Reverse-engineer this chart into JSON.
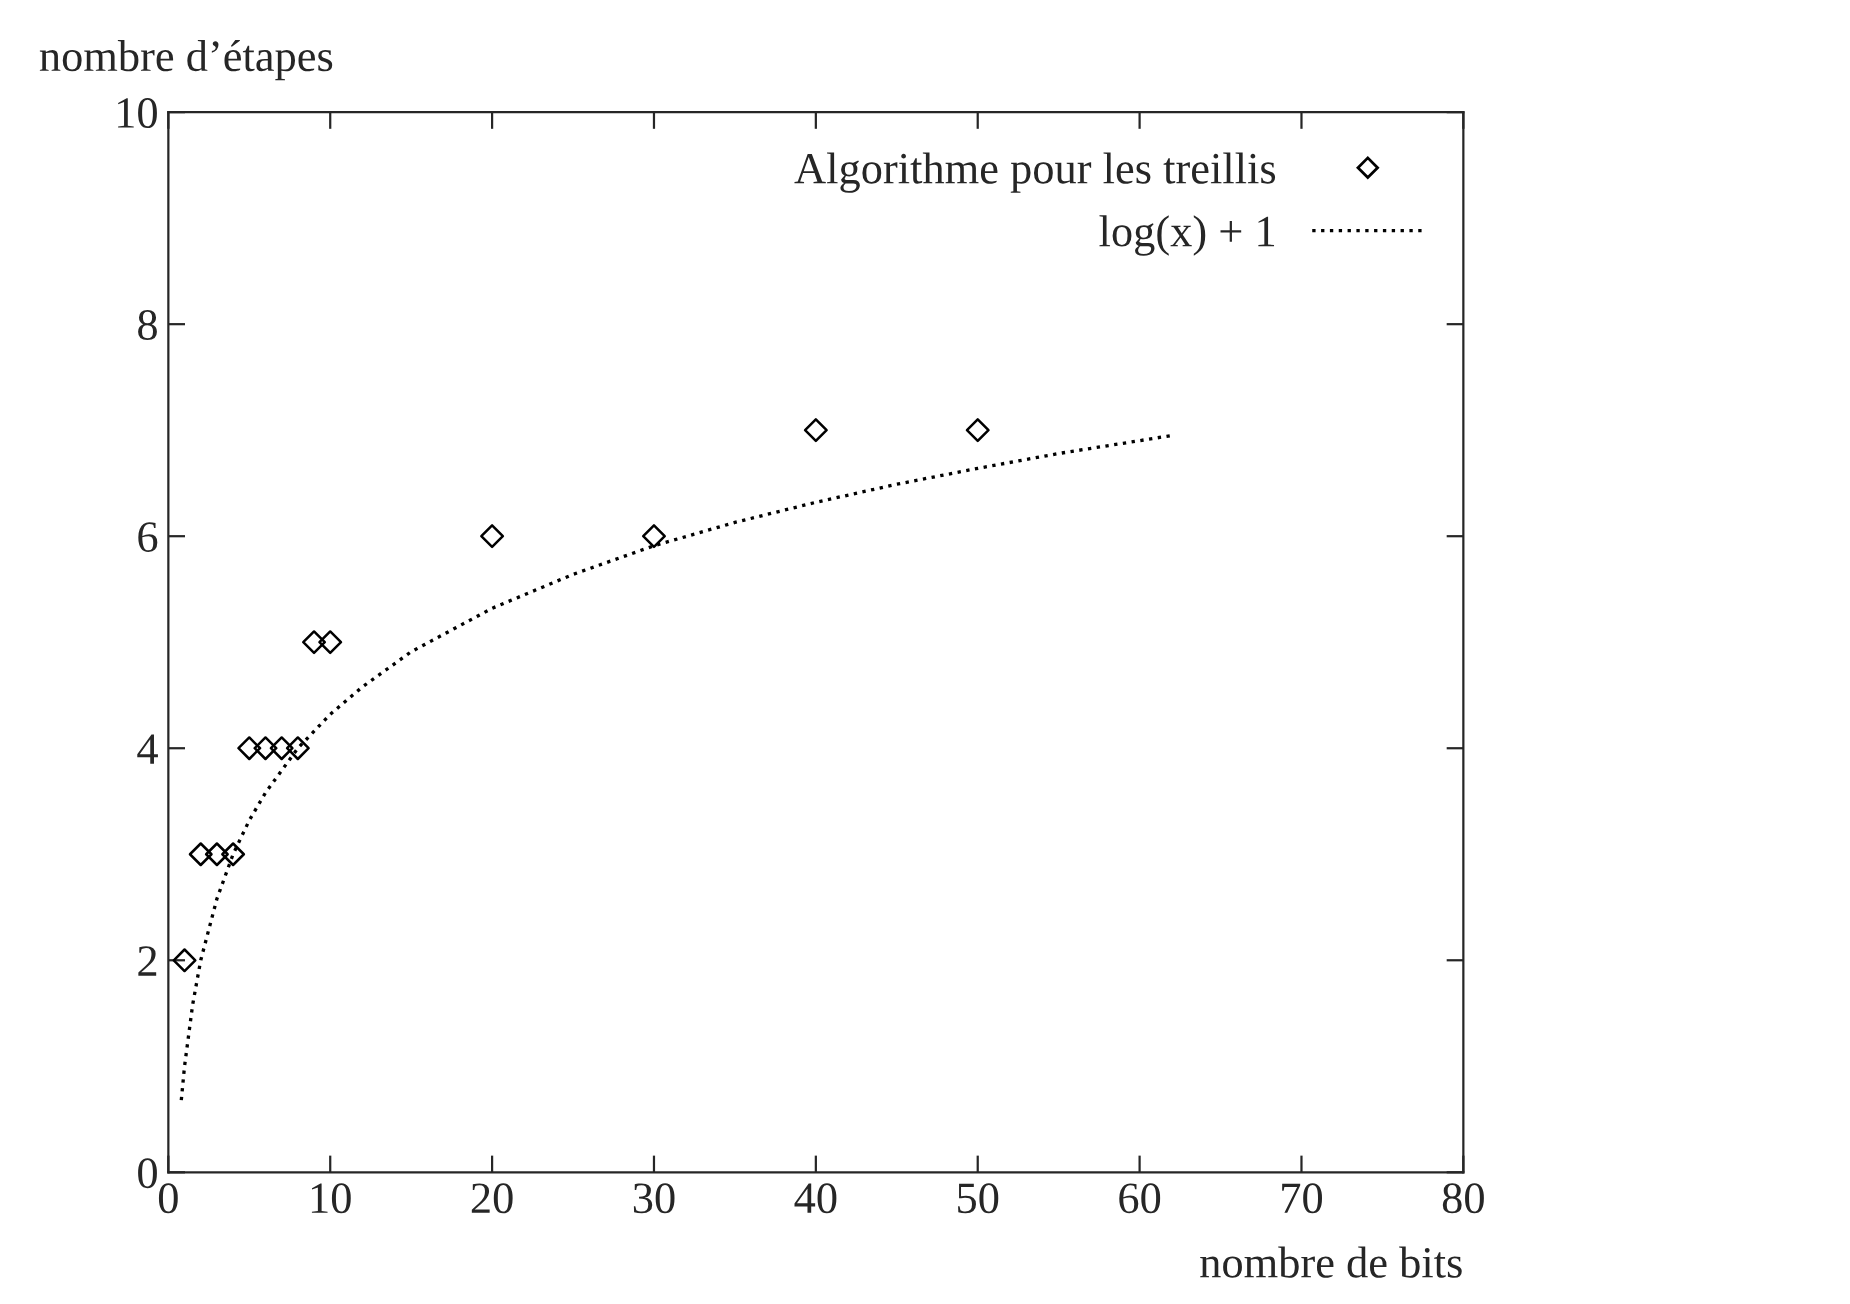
{
  "chart_data": {
    "type": "scatter",
    "xlabel": "nombre de bits",
    "ylabel": "nombre d’étapes",
    "xlim": [
      0,
      80
    ],
    "xticks": [
      0,
      10,
      20,
      30,
      40,
      50,
      60,
      70,
      80
    ],
    "ylim": [
      0,
      10
    ],
    "yticks": [
      0,
      2,
      4,
      6,
      8,
      10
    ],
    "grid": false,
    "legend": "top right",
    "series": [
      {
        "name": "Algorithme pour les treillis",
        "marker": "diamond",
        "color": "#000000",
        "x": [
          1,
          2,
          3,
          4,
          5,
          6,
          7,
          8,
          9,
          10,
          20,
          30,
          40,
          50
        ],
        "values": [
          2,
          3,
          3,
          3,
          4,
          4,
          4,
          4,
          5,
          5,
          6,
          6,
          7,
          7
        ]
      },
      {
        "name": "log(x) + 1",
        "type": "line",
        "line_style": "dotted",
        "color": "#000000",
        "x": [
          0.8,
          1,
          1.5,
          2,
          3,
          4,
          5,
          6,
          8,
          10,
          12,
          15,
          20,
          25,
          30,
          35,
          40,
          45,
          50,
          55,
          62
        ],
        "values": [
          0.68,
          1,
          1.58,
          2,
          2.58,
          3,
          3.32,
          3.58,
          4,
          4.32,
          4.58,
          4.91,
          5.32,
          5.64,
          5.91,
          6.13,
          6.32,
          6.49,
          6.64,
          6.78,
          6.95
        ]
      }
    ]
  }
}
